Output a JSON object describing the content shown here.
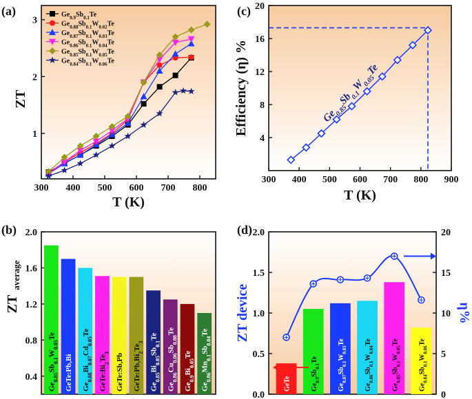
{
  "chart_data": [
    {
      "panel": "(a)",
      "type": "line",
      "xlabel": "T (K)",
      "ylabel": "ZT",
      "xlim": [
        300,
        850
      ],
      "ylim": [
        0.2,
        3.25
      ],
      "xticks": [
        300,
        400,
        500,
        600,
        700,
        800
      ],
      "yticks": [
        1,
        2,
        3
      ],
      "series": [
        {
          "name": "Ge0.9Sb0.1Te",
          "color": "#000000",
          "marker": "square",
          "x": [
            323,
            373,
            423,
            473,
            523,
            573,
            623,
            673,
            723,
            773
          ],
          "y": [
            0.32,
            0.48,
            0.62,
            0.78,
            0.95,
            1.15,
            1.52,
            1.82,
            2.02,
            2.33
          ]
        },
        {
          "name": "Ge0.88Sb0.1W0.02Te",
          "color": "#ff1a1a",
          "marker": "circle",
          "x": [
            323,
            373,
            423,
            473,
            523,
            573,
            623,
            673,
            723,
            773
          ],
          "y": [
            0.3,
            0.5,
            0.66,
            0.82,
            1.0,
            1.24,
            1.9,
            2.2,
            2.33,
            2.34
          ]
        },
        {
          "name": "Ge0.87Sb0.1W0.03Te",
          "color": "#1a3cff",
          "marker": "triangle",
          "x": [
            323,
            373,
            423,
            473,
            523,
            573,
            623,
            673,
            723,
            773
          ],
          "y": [
            0.29,
            0.47,
            0.62,
            0.8,
            0.98,
            1.18,
            1.65,
            2.1,
            2.4,
            2.58
          ]
        },
        {
          "name": "Ge0.86Sb0.1W0.04Te",
          "color": "#ff22ee",
          "marker": "triangle-down",
          "x": [
            323,
            373,
            423,
            473,
            523,
            573,
            623,
            673,
            723,
            773
          ],
          "y": [
            0.29,
            0.5,
            0.7,
            0.86,
            1.05,
            1.26,
            1.9,
            2.3,
            2.6,
            2.66
          ]
        },
        {
          "name": "Ge0.85Sb0.1W0.05Te",
          "color": "#9a9a1c",
          "marker": "diamond",
          "x": [
            323,
            373,
            423,
            473,
            523,
            573,
            623,
            673,
            723,
            773,
            823
          ],
          "y": [
            0.33,
            0.58,
            0.78,
            0.95,
            1.12,
            1.3,
            1.9,
            2.38,
            2.7,
            2.82,
            2.92
          ]
        },
        {
          "name": "Ge0.84Sb0.1W0.06Te",
          "color": "#1a237e",
          "marker": "star",
          "x": [
            323,
            373,
            423,
            473,
            523,
            573,
            623,
            673,
            723,
            748,
            773
          ],
          "y": [
            0.25,
            0.35,
            0.47,
            0.62,
            0.78,
            0.95,
            1.15,
            1.35,
            1.72,
            1.75,
            1.74
          ]
        }
      ]
    },
    {
      "panel": "(c)",
      "type": "line",
      "xlabel": "T (K)",
      "ylabel": "Efficiency (η) %",
      "xlim": [
        300,
        900
      ],
      "ylim": [
        0,
        20
      ],
      "xticks": [
        300,
        400,
        500,
        600,
        700,
        800,
        900
      ],
      "yticks": [
        4,
        8,
        12,
        16,
        20
      ],
      "annotation": "Ge0.85Sb0.1W0.05Te",
      "series": [
        {
          "name": "Ge0.85Sb0.1W0.05Te",
          "color": "#1a3cff",
          "marker": "diamond",
          "x": [
            373,
            423,
            473,
            523,
            573,
            623,
            673,
            723,
            773,
            823
          ],
          "y": [
            1.3,
            2.8,
            4.5,
            6.2,
            7.8,
            9.6,
            11.4,
            13.4,
            15.2,
            17.0
          ]
        }
      ],
      "guide": {
        "x": 823,
        "y": 17.3
      }
    },
    {
      "panel": "(b)",
      "type": "bar",
      "ylabel": "ZT",
      "ylabel_sub": "average",
      "ylim": [
        0.2,
        2.0
      ],
      "yticks": [
        0.4,
        0.8,
        1.2,
        1.6,
        2.0
      ],
      "categories": [
        "Ge0.85Sb0.1W0.05Te",
        "GeTe:Pb,Bi",
        "Ge0.88Bi0.07Cd0.05Te",
        "GeTe:Bi2Te3",
        "GeTe:Sb,Pb",
        "GeTe:Pb,Bi2Te3",
        "Ge0.85Bi0.05Sb0.1Te",
        "Ge0.86Cu0.06Sb0.08Te",
        "Ge0.9Bi0.05Te",
        "Ge0.86Mn0.1Sb0.04Te"
      ],
      "values": [
        1.85,
        1.7,
        1.6,
        1.51,
        1.5,
        1.5,
        1.35,
        1.25,
        1.2,
        1.1
      ],
      "colors": [
        "#19e619",
        "#1a3cff",
        "#1ad6f2",
        "#ff22ee",
        "#f5f51e",
        "#9a9a1c",
        "#1a237e",
        "#7a1f7a",
        "#8b0a0a",
        "#2e7d32"
      ],
      "textcolors": [
        "#111111",
        "#ffffff",
        "#111111",
        "#111111",
        "#111111",
        "#111111",
        "#ffffff",
        "#ffffff",
        "#ffffff",
        "#ffffff"
      ]
    },
    {
      "panel": "(d)",
      "type": "bar+line",
      "ylabel": "ZT device",
      "y2label": "η%",
      "ylim": [
        0,
        2.0
      ],
      "y2lim": [
        0,
        20
      ],
      "yticks": [
        0.0,
        0.5,
        1.0,
        1.5,
        2.0
      ],
      "y2ticks": [
        0,
        5,
        10,
        15,
        20
      ],
      "categories": [
        "GeTe",
        "Ge0.9Sb0.1Te",
        "Ge0.87Sb0.1W0.03Te",
        "Ge0.86Sb0.1W0.04Te",
        "Ge0.85Sb0.1W0.05Te",
        "Ge0.84Sb0.1W0.06Te"
      ],
      "values": [
        0.38,
        1.05,
        1.12,
        1.15,
        1.38,
        0.82
      ],
      "efficiency": [
        7.0,
        13.6,
        14.1,
        14.3,
        17.0,
        11.6
      ],
      "colors": [
        "#ff1a1a",
        "#19e619",
        "#1a3cff",
        "#1ad6f2",
        "#ff22ee",
        "#ffff1a"
      ],
      "textcolors": [
        "#ffffff",
        "#111111",
        "#ffffff",
        "#111111",
        "#111111",
        "#111111"
      ]
    }
  ]
}
